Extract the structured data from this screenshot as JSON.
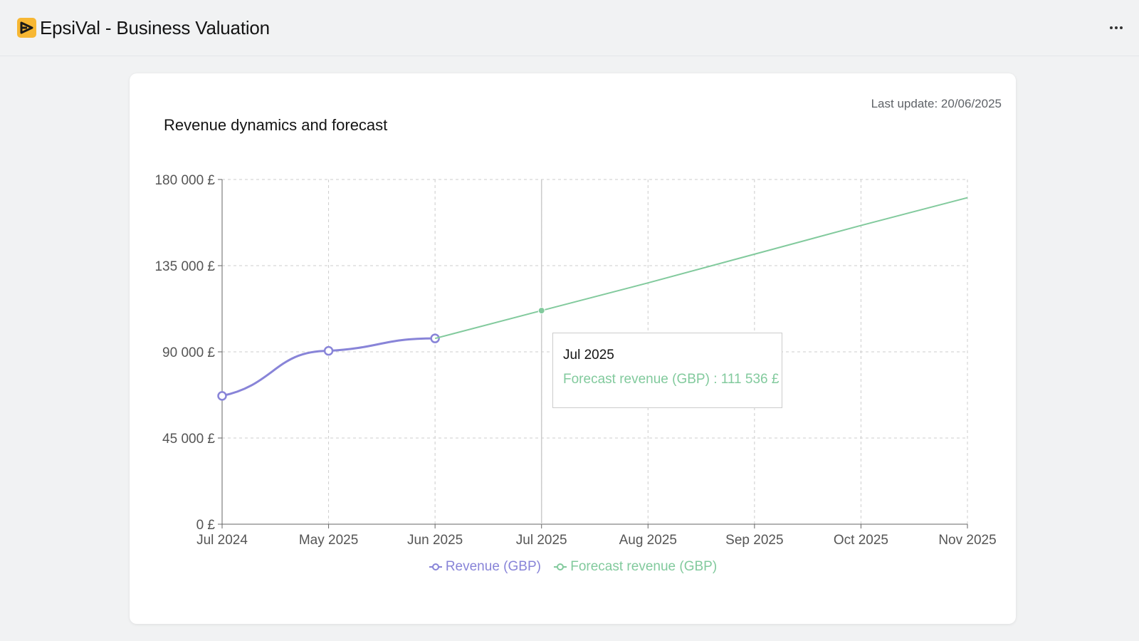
{
  "app": {
    "title": "EpsiVal - Business Valuation",
    "logo_color": "#f7b733"
  },
  "header": {
    "menu_icon": "more-horizontal-icon"
  },
  "card": {
    "last_update_label": "Last update:",
    "last_update_value": "20/06/2025"
  },
  "chart_data": {
    "type": "line",
    "title": "Revenue dynamics and forecast",
    "xlabel": "",
    "ylabel": "",
    "categories": [
      "Jul 2024",
      "May 2025",
      "Jun 2025",
      "Jul 2025",
      "Aug 2025",
      "Sep 2025",
      "Oct 2025",
      "Nov 2025"
    ],
    "y_ticks": [
      "0 £",
      "45 000 £",
      "90 000 £",
      "135 000 £",
      "180 000 £"
    ],
    "ylim": [
      0,
      180000
    ],
    "grid": true,
    "legend_position": "bottom",
    "series": [
      {
        "name": "Revenue (GBP)",
        "color": "#8884d8",
        "values": [
          67000,
          90500,
          97000,
          null,
          null,
          null,
          null,
          null
        ]
      },
      {
        "name": "Forecast revenue (GBP)",
        "color": "#82ca9d",
        "values": [
          null,
          null,
          97000,
          111536,
          126000,
          141000,
          156000,
          170500
        ]
      }
    ],
    "tooltip": {
      "label": "Jul 2025",
      "text": "Forecast revenue (GBP) : 111 536 £"
    }
  }
}
